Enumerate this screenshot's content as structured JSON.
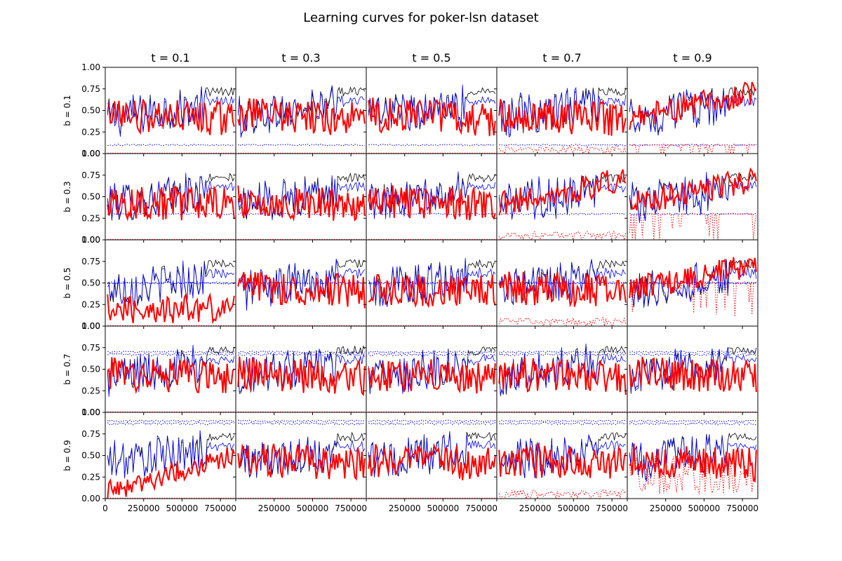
{
  "chart_data": {
    "type": "line",
    "title": "Learning curves for poker-lsn dataset",
    "col_titles": [
      "t = 0.1",
      "t = 0.3",
      "t = 0.5",
      "t = 0.7",
      "t = 0.9"
    ],
    "row_titles": [
      "b = 0.1",
      "b = 0.3",
      "b = 0.5",
      "b = 0.7",
      "b = 0.9"
    ],
    "xlim": [
      0,
      850000
    ],
    "ylim": [
      0,
      1
    ],
    "x_ticks": [
      0,
      250000,
      500000,
      750000
    ],
    "x_tick_labels_first_col": [
      "0",
      "250000",
      "500000",
      "750000"
    ],
    "x_tick_labels_other_cols": [
      "",
      "250000",
      "500000",
      "750000"
    ],
    "y_ticks": [
      0,
      0.25,
      0.5,
      0.75,
      1.0
    ],
    "y_tick_labels": [
      "0.00",
      "0.25",
      "0.50",
      "0.75",
      "1.00"
    ],
    "grid": false,
    "legend": "none",
    "colors": {
      "black": "#000000",
      "blue": "#0000ff",
      "red": "#ff0000"
    },
    "series_styles": [
      {
        "id": "black-solid",
        "color": "#000000",
        "style": "solid"
      },
      {
        "id": "blue-solid",
        "color": "#0000ff",
        "style": "solid"
      },
      {
        "id": "red-solid",
        "color": "#ff0000",
        "style": "solid"
      },
      {
        "id": "blue-dotted",
        "color": "#0000ff",
        "style": "dotted"
      },
      {
        "id": "red-dotted",
        "color": "#ff0000",
        "style": "dotted"
      }
    ],
    "x_start": 15000,
    "x_end": 840000,
    "note_values": "Each panel shows learning-curve series over training samples; blue dotted lines sit near the row's b value, black/blue solid curves rise from ~0.4 toward ~0.8, red solid curves fluctuate around 0.3-0.7."
  }
}
